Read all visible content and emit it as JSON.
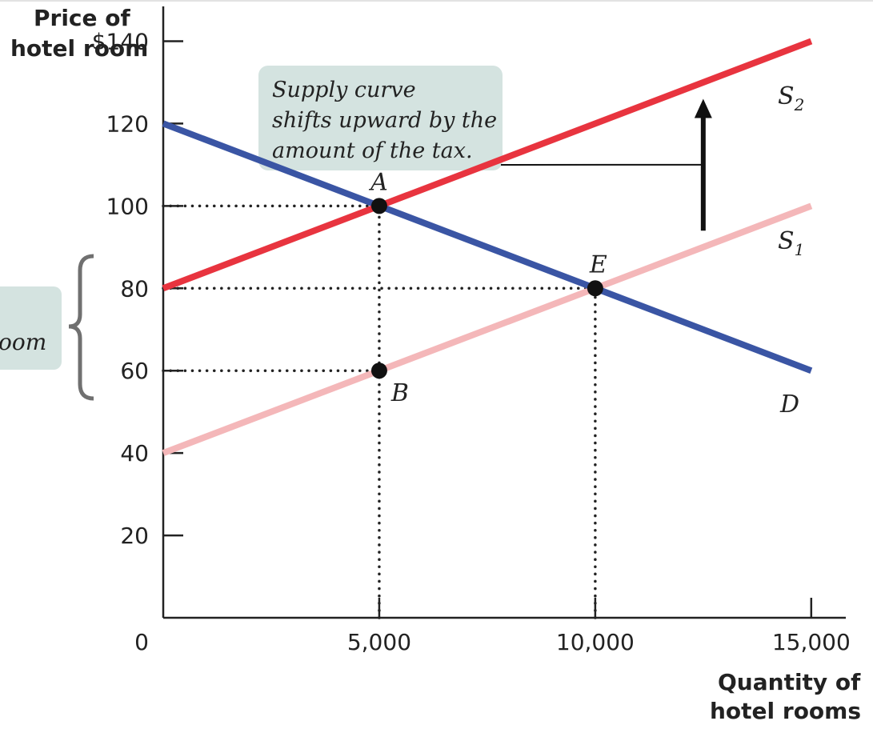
{
  "chart_data": {
    "type": "line",
    "ylabel": [
      "Price of",
      "hotel room"
    ],
    "xlabel": [
      "Quantity of",
      "hotel rooms"
    ],
    "xlim": [
      0,
      15800
    ],
    "ylim": [
      0,
      150
    ],
    "xticks": [
      5000,
      10000,
      15000
    ],
    "xtick_labels": [
      "5,000",
      "10,000",
      "15,000"
    ],
    "yticks": [
      20,
      40,
      60,
      80,
      100,
      120,
      140
    ],
    "ytick_labels": [
      "20",
      "40",
      "60",
      "80",
      "100",
      "120",
      "$140"
    ],
    "origin_label": "0",
    "series": [
      {
        "name": "D",
        "x": [
          0,
          15000
        ],
        "y": [
          120,
          60
        ],
        "color": "#3a55a4"
      },
      {
        "name": "S1",
        "x": [
          0,
          15000
        ],
        "y": [
          40,
          100
        ],
        "color": "#f4b7b9"
      },
      {
        "name": "S2",
        "x": [
          0,
          15000
        ],
        "y": [
          80,
          140
        ],
        "color": "#e8343f"
      }
    ],
    "points": [
      {
        "label": "A",
        "x": 5000,
        "y": 100
      },
      {
        "label": "E",
        "x": 10000,
        "y": 80
      },
      {
        "label": "B",
        "x": 5000,
        "y": 60
      }
    ],
    "guides": [
      {
        "from": [
          0,
          100
        ],
        "to": [
          5000,
          100
        ]
      },
      {
        "from": [
          0,
          80
        ],
        "to": [
          10000,
          80
        ]
      },
      {
        "from": [
          0,
          60
        ],
        "to": [
          5000,
          60
        ]
      },
      {
        "from": [
          5000,
          0
        ],
        "to": [
          5000,
          100
        ]
      },
      {
        "from": [
          10000,
          0
        ],
        "to": [
          10000,
          80
        ]
      }
    ],
    "shift_arrow": {
      "x": 12500,
      "y_from": 94,
      "y_to": 126
    },
    "callout": {
      "lines": [
        "Supply curve",
        "shifts upward by the",
        "amount of the tax."
      ],
      "pointer_end": [
        12450,
        110
      ]
    },
    "side_callout_text": "oom",
    "colors": {
      "callout_bg": "#d4e3e0",
      "brace": "#707070",
      "axis": "#222222"
    }
  }
}
